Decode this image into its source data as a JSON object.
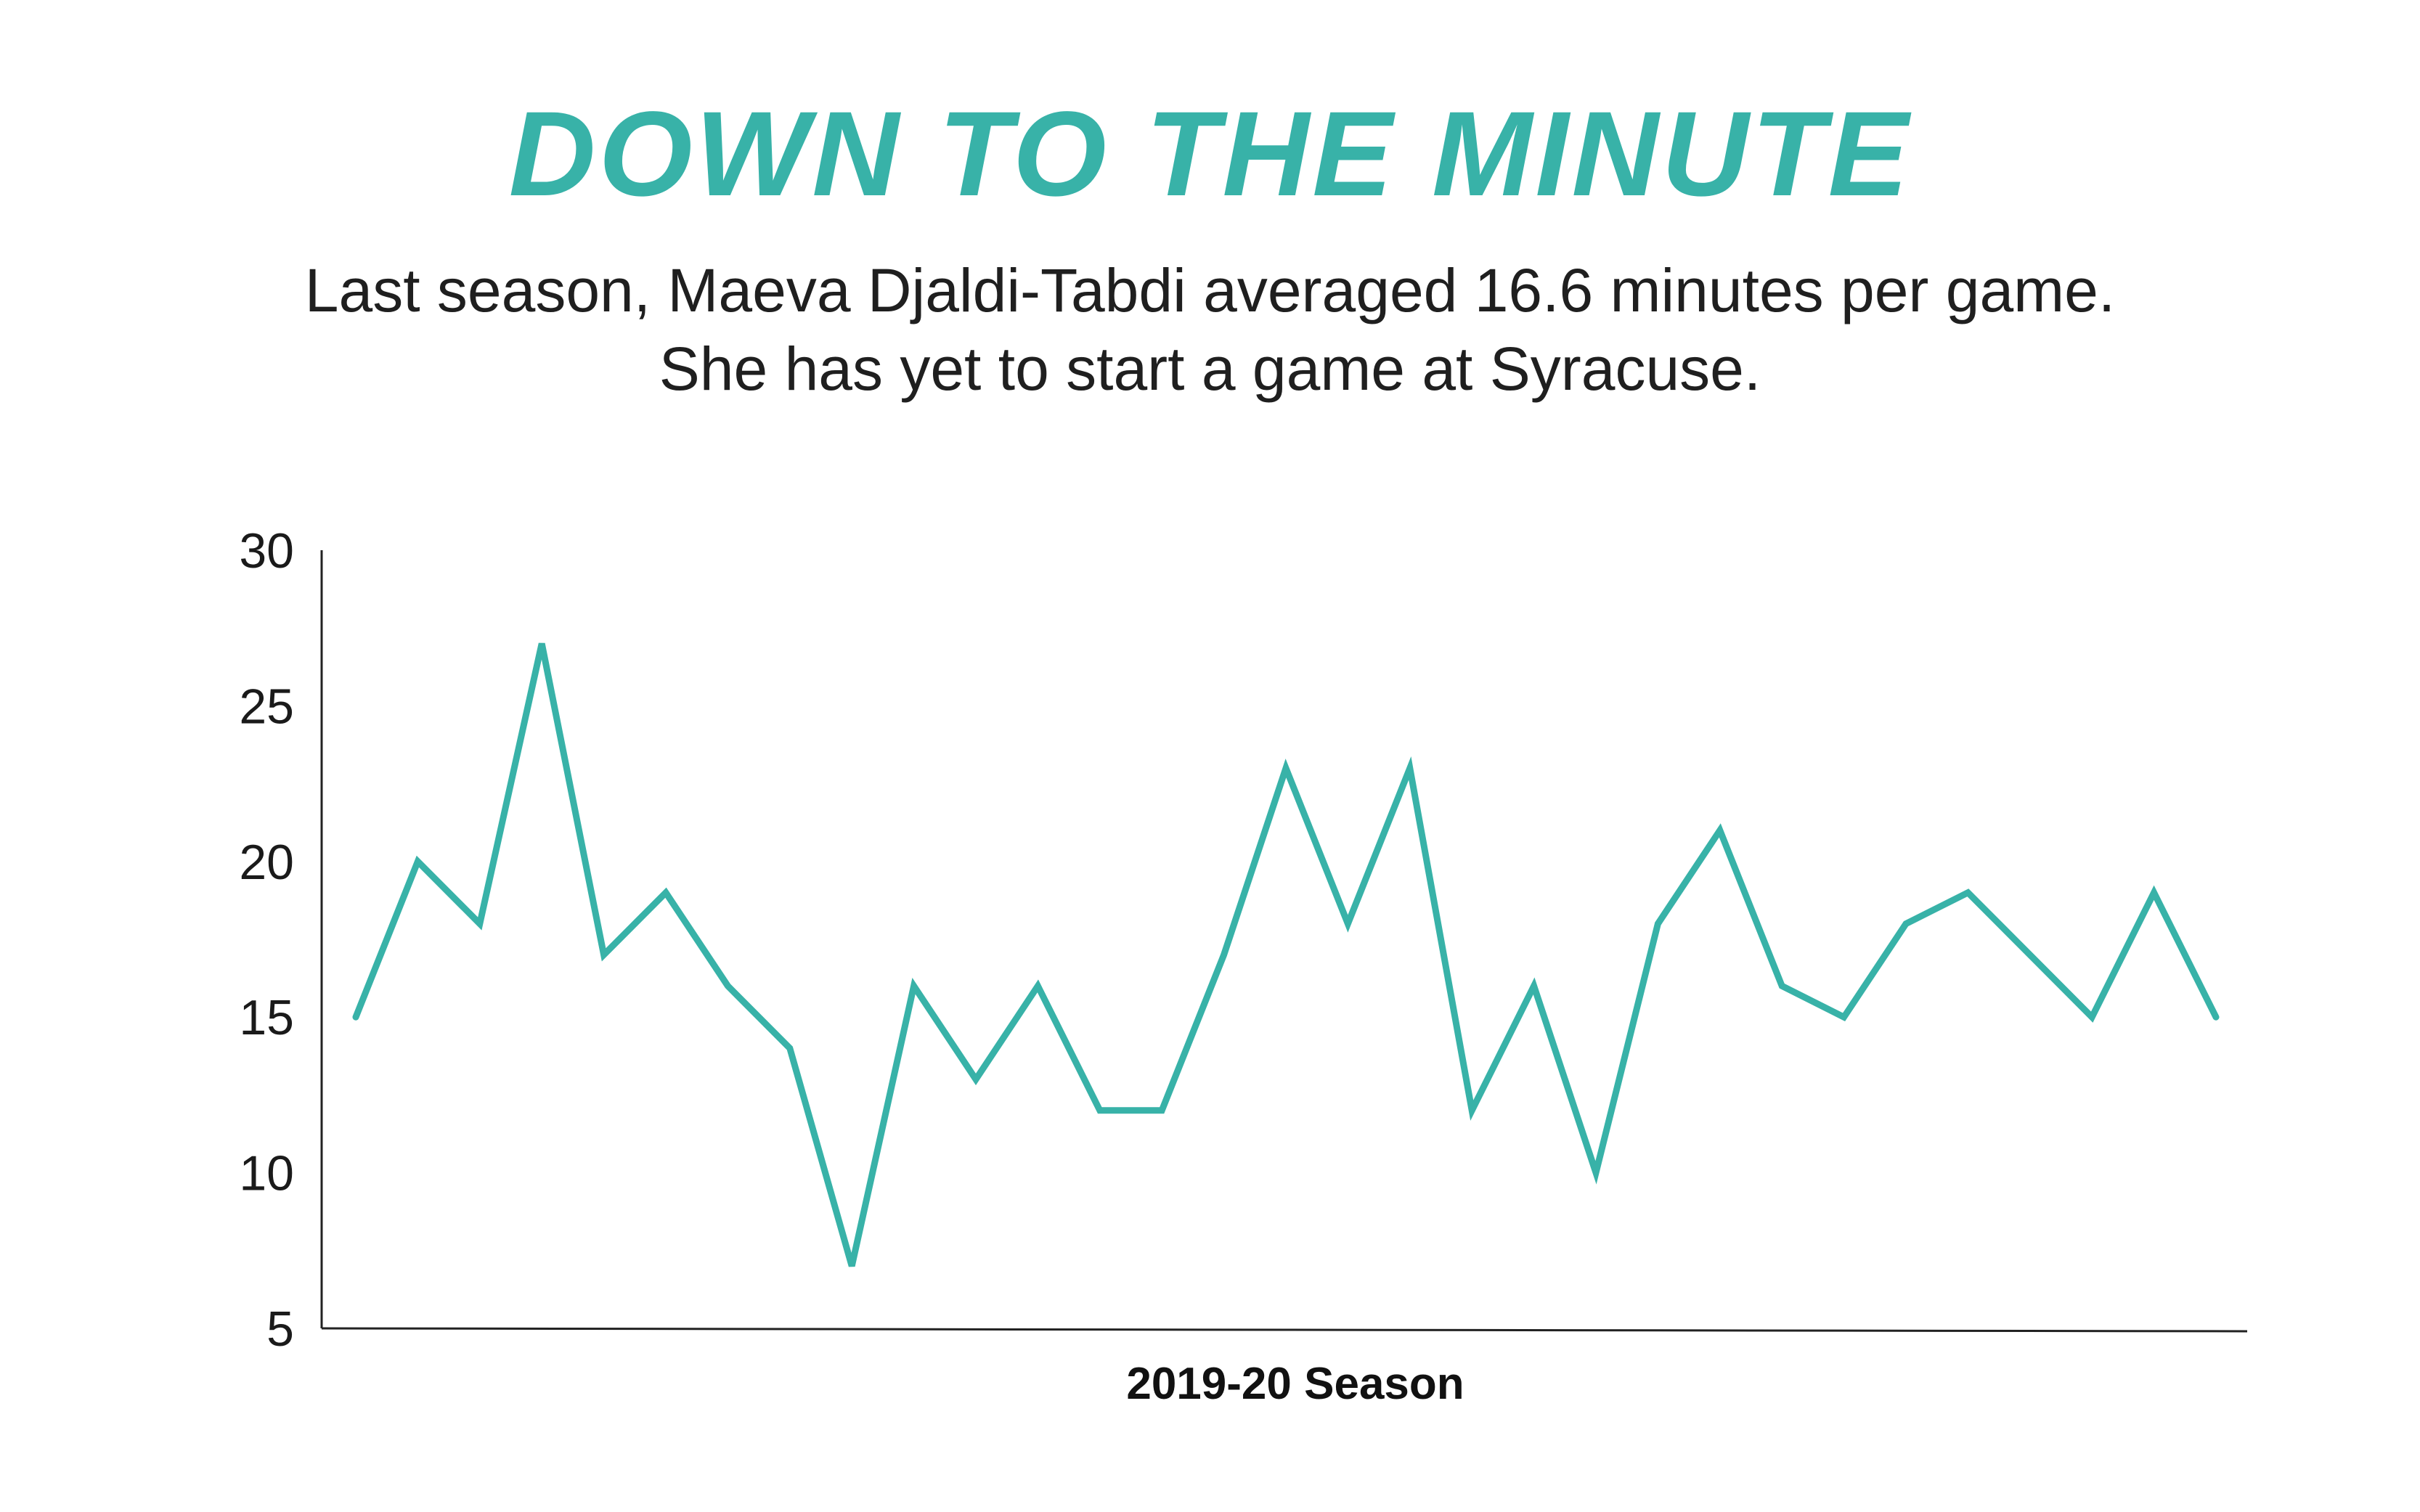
{
  "accent_color": "#38b2a8",
  "chart_data": {
    "type": "line",
    "title": "DOWN TO THE MINUTE",
    "subtitle_lines": [
      "Last season, Maeva Djaldi-Tabdi averaged 16.6 minutes per game.",
      "She has yet to start a game at Syracuse."
    ],
    "xlabel": "2019-20 Season",
    "ylabel": "",
    "ylim": [
      5,
      30
    ],
    "yticks": [
      5,
      10,
      15,
      20,
      25,
      30
    ],
    "grid": false,
    "series": [
      {
        "name": "Minutes per game",
        "color": "#38b2a8",
        "values": [
          15,
          20,
          18,
          27,
          17,
          19,
          16,
          14,
          7,
          16,
          13,
          16,
          12,
          12,
          17,
          23,
          18,
          23,
          12,
          16,
          10,
          18,
          21,
          16,
          15,
          18,
          19,
          17,
          15,
          19,
          15
        ]
      }
    ]
  }
}
